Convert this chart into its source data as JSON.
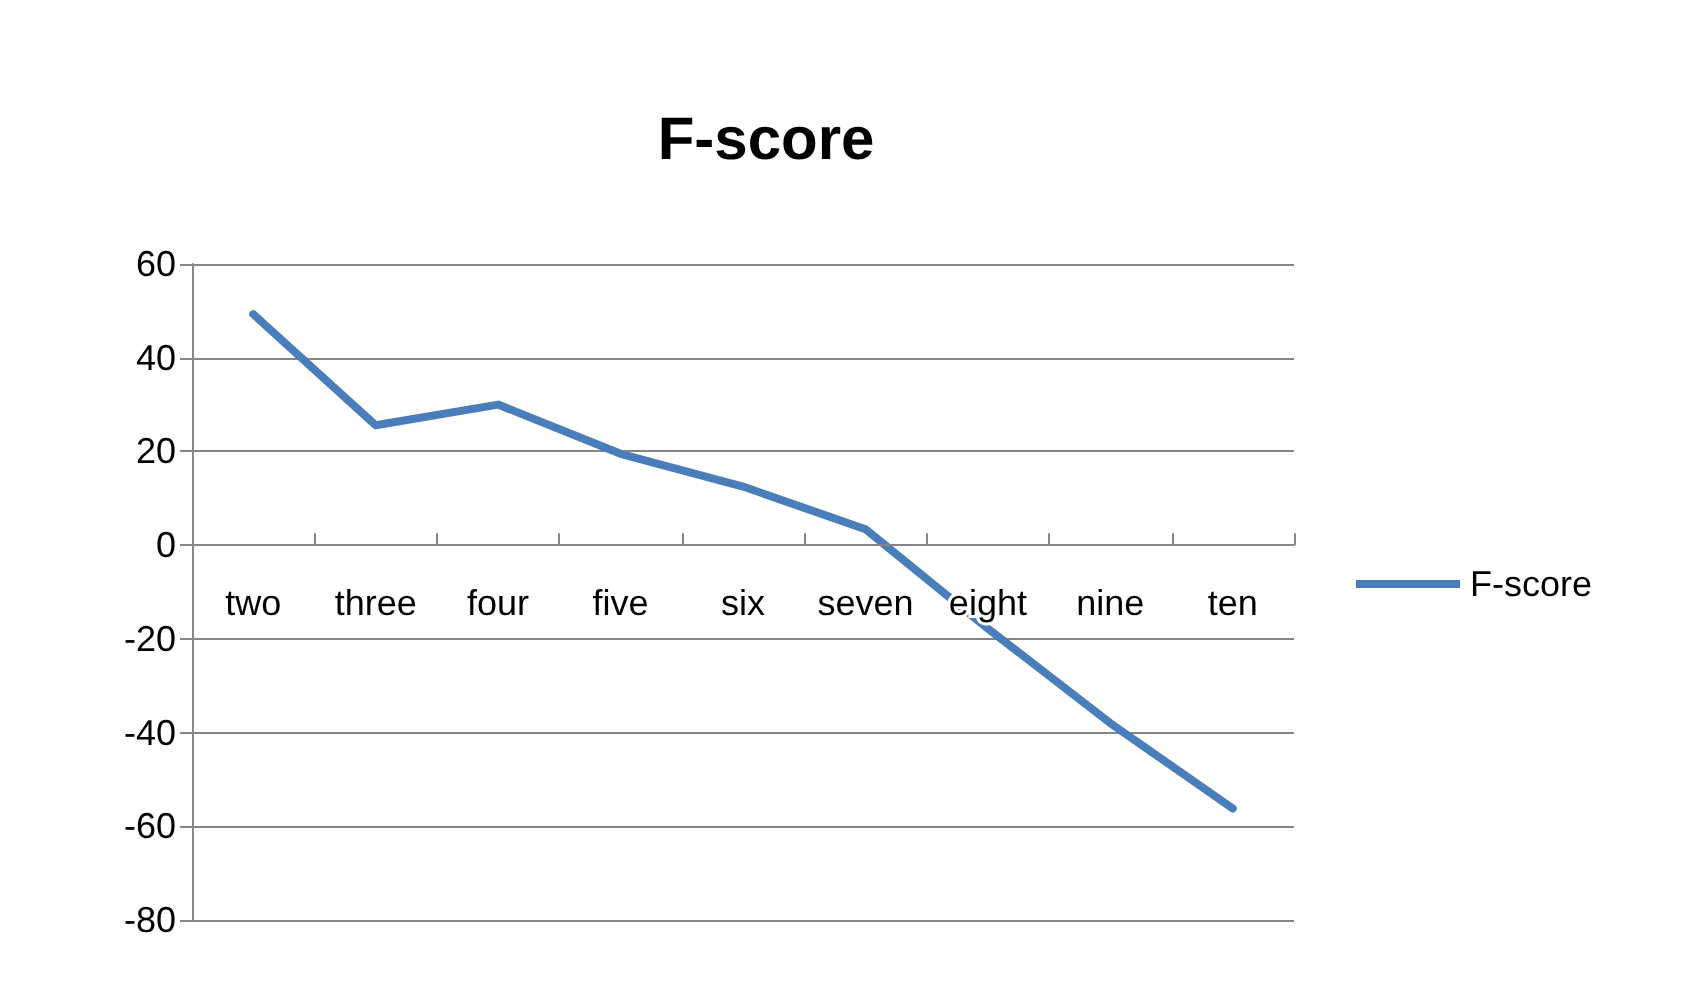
{
  "chart_data": {
    "type": "line",
    "title": "F-score",
    "categories": [
      "two",
      "three",
      "four",
      "five",
      "six",
      "seven",
      "eight",
      "nine",
      "ten"
    ],
    "series": [
      {
        "name": "F-score",
        "color": "#4a7ebb",
        "values": [
          49.3,
          25.6,
          30,
          19.5,
          12.5,
          3.4,
          -17.8,
          -38,
          -56.2
        ]
      }
    ],
    "ylim": [
      -80,
      60
    ],
    "yticks": [
      -80,
      -60,
      -40,
      -20,
      0,
      20,
      40,
      60
    ],
    "grid": "y",
    "legend": "right",
    "marker": "none"
  }
}
